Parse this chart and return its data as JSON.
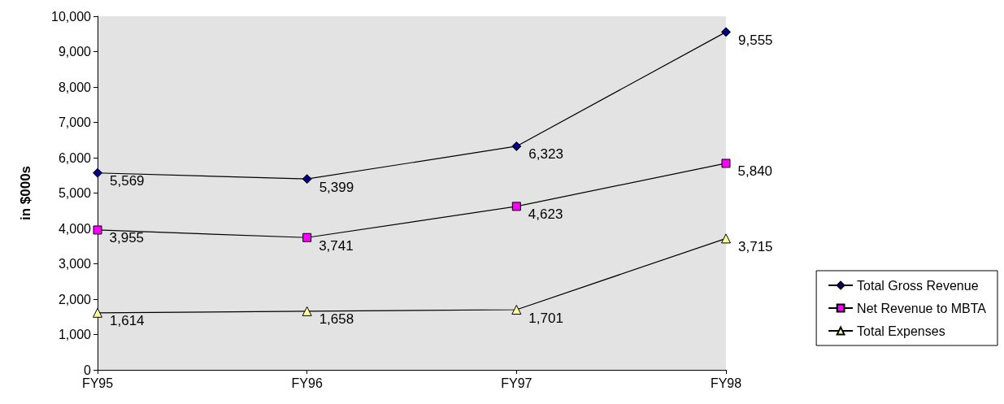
{
  "chart_data": {
    "type": "line",
    "ylabel": "in $000s",
    "categories": [
      "FY95",
      "FY96",
      "FY97",
      "FY98"
    ],
    "series": [
      {
        "name": "Total Gross Revenue",
        "color": "#000080",
        "marker": "diamond",
        "values": [
          5569,
          5399,
          6323,
          9555
        ],
        "value_labels": [
          "5,569",
          "5,399",
          "6,323",
          "9,555"
        ]
      },
      {
        "name": "Net Revenue to MBTA",
        "color": "#ff00ff",
        "marker": "square",
        "values": [
          3955,
          3741,
          4623,
          5840
        ],
        "value_labels": [
          "3,955",
          "3,741",
          "4,623",
          "5,840"
        ]
      },
      {
        "name": "Total Expenses",
        "color": "#ffff99",
        "marker": "triangle",
        "values": [
          1614,
          1658,
          1701,
          3715
        ],
        "value_labels": [
          "1,614",
          "1,658",
          "1,701",
          "3,715"
        ]
      }
    ],
    "ylim": [
      0,
      10000
    ],
    "yticks": [
      0,
      {
        "value": 1000,
        "label": "1,000"
      },
      {
        "value": 2000,
        "label": "2,000"
      },
      {
        "value": 3000,
        "label": "3,000"
      },
      {
        "value": 4000,
        "label": "4,000"
      },
      {
        "value": 5000,
        "label": "5,000"
      },
      {
        "value": 6000,
        "label": "6,000"
      },
      {
        "value": 7000,
        "label": "7,000"
      },
      {
        "value": 8000,
        "label": "8,000"
      },
      {
        "value": 9000,
        "label": "9,000"
      },
      {
        "value": 10000,
        "label": "10,000"
      }
    ],
    "grid": false,
    "legend": "bottom right",
    "line_style": "solid"
  }
}
